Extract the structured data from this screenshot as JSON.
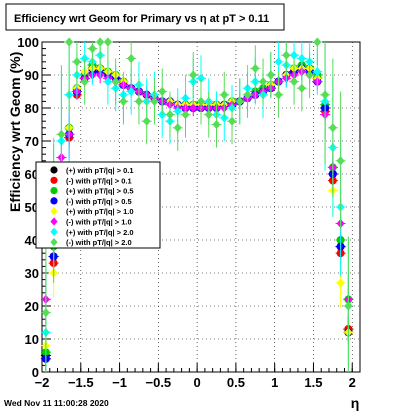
{
  "title": "Efficiency wrt Geom for Primary vs   η at pT > 0.11",
  "footer_date": "Wed Nov 11 11:00:28 2020",
  "chart_data": {
    "type": "scatter",
    "title": "Efficiency wrt Geom for Primary vs   η at pT > 0.11",
    "xlabel": "η",
    "ylabel": "Efficiency wrt Geom (%)",
    "xlim": [
      -2.0,
      2.1
    ],
    "ylim": [
      0,
      100
    ],
    "xticks": [
      -2,
      -1.5,
      -1,
      -0.5,
      0,
      0.5,
      1,
      1.5,
      2
    ],
    "xtick_labels": [
      "−2",
      "−1.5",
      "−1",
      "−0.5",
      "0",
      "0.5",
      "1",
      "1.5",
      "2"
    ],
    "yticks": [
      0,
      10,
      20,
      30,
      40,
      50,
      60,
      70,
      80,
      90,
      100
    ],
    "ytick_labels": [
      "0",
      "10",
      "20",
      "30",
      "40",
      "50",
      "60",
      "70",
      "80",
      "90",
      "100"
    ],
    "grid": true,
    "legend_position": "left-middle",
    "series": [
      {
        "name": "(+) with pT/|q| > 0.1",
        "color": "#000000",
        "marker": "circle",
        "x": [
          -1.95,
          -1.85,
          -1.75,
          -1.65,
          -1.55,
          -1.45,
          -1.35,
          -1.25,
          -1.15,
          -1.05,
          -0.95,
          -0.85,
          -0.75,
          -0.65,
          -0.55,
          -0.45,
          -0.35,
          -0.25,
          -0.15,
          -0.05,
          0.05,
          0.15,
          0.25,
          0.35,
          0.45,
          0.55,
          0.65,
          0.75,
          0.85,
          0.95,
          1.05,
          1.15,
          1.25,
          1.35,
          1.45,
          1.55,
          1.65,
          1.75,
          1.85,
          1.95
        ],
        "y": [
          5,
          35,
          60,
          72,
          85,
          90,
          92,
          92,
          91,
          89,
          87,
          86,
          85,
          84,
          83,
          82,
          82,
          81,
          81,
          81,
          81,
          81,
          81,
          81,
          82,
          82,
          83,
          84,
          85,
          86,
          88,
          90,
          91,
          92,
          92,
          89,
          80,
          60,
          38,
          13
        ]
      },
      {
        "name": "(-) with pT/|q| > 0.1",
        "color": "#ff0000",
        "marker": "circle",
        "x": [
          -1.95,
          -1.85,
          -1.75,
          -1.65,
          -1.55,
          -1.45,
          -1.35,
          -1.25,
          -1.15,
          -1.05,
          -0.95,
          -0.85,
          -0.75,
          -0.65,
          -0.55,
          -0.45,
          -0.35,
          -0.25,
          -0.15,
          -0.05,
          0.05,
          0.15,
          0.25,
          0.35,
          0.45,
          0.55,
          0.65,
          0.75,
          0.85,
          0.95,
          1.05,
          1.15,
          1.25,
          1.35,
          1.45,
          1.55,
          1.65,
          1.75,
          1.85,
          1.95
        ],
        "y": [
          4,
          33,
          58,
          71,
          84,
          89,
          91,
          92,
          90,
          89,
          88,
          86,
          85,
          84,
          83,
          82,
          82,
          81,
          80,
          80,
          80,
          80,
          80,
          81,
          81,
          82,
          83,
          84,
          85,
          86,
          88,
          90,
          91,
          92,
          91,
          88,
          79,
          58,
          36,
          13
        ]
      },
      {
        "name": "(+) with pT/|q| > 0.5",
        "color": "#00cc00",
        "marker": "circle",
        "x": [
          -1.95,
          -1.85,
          -1.75,
          -1.65,
          -1.55,
          -1.45,
          -1.35,
          -1.25,
          -1.15,
          -1.05,
          -0.95,
          -0.85,
          -0.75,
          -0.65,
          -0.55,
          -0.45,
          -0.35,
          -0.25,
          -0.15,
          -0.05,
          0.05,
          0.15,
          0.25,
          0.35,
          0.45,
          0.55,
          0.65,
          0.75,
          0.85,
          0.95,
          1.05,
          1.15,
          1.25,
          1.35,
          1.45,
          1.55,
          1.65,
          1.75,
          1.85,
          1.95
        ],
        "y": [
          6,
          38,
          62,
          74,
          86,
          90,
          93,
          92,
          91,
          90,
          88,
          86,
          85,
          84,
          83,
          82,
          82,
          81,
          81,
          81,
          81,
          81,
          81,
          81,
          82,
          82,
          83,
          85,
          86,
          87,
          88,
          90,
          92,
          93,
          92,
          90,
          81,
          62,
          40,
          22
        ]
      },
      {
        "name": "(-) with pT/|q| > 0.5",
        "color": "#0000ff",
        "marker": "circle",
        "x": [
          -1.95,
          -1.85,
          -1.75,
          -1.65,
          -1.55,
          -1.45,
          -1.35,
          -1.25,
          -1.15,
          -1.05,
          -0.95,
          -0.85,
          -0.75,
          -0.65,
          -0.55,
          -0.45,
          -0.35,
          -0.25,
          -0.15,
          -0.05,
          0.05,
          0.15,
          0.25,
          0.35,
          0.45,
          0.55,
          0.65,
          0.75,
          0.85,
          0.95,
          1.05,
          1.15,
          1.25,
          1.35,
          1.45,
          1.55,
          1.65,
          1.75,
          1.85,
          1.95
        ],
        "y": [
          4,
          35,
          60,
          72,
          85,
          89,
          91,
          91,
          90,
          89,
          87,
          86,
          85,
          84,
          83,
          82,
          82,
          81,
          80,
          80,
          80,
          80,
          80,
          81,
          81,
          82,
          83,
          84,
          85,
          86,
          88,
          90,
          91,
          92,
          91,
          88,
          80,
          60,
          38,
          12
        ]
      },
      {
        "name": "(+) with pT/|q| > 1.0",
        "color": "#ffff00",
        "marker": "diamond",
        "x": [
          -1.95,
          -1.85,
          -1.75,
          -1.65,
          -1.55,
          -1.45,
          -1.35,
          -1.25,
          -1.15,
          -1.05,
          -0.95,
          -0.85,
          -0.75,
          -0.65,
          -0.55,
          -0.45,
          -0.35,
          -0.25,
          -0.15,
          -0.05,
          0.05,
          0.15,
          0.25,
          0.35,
          0.45,
          0.55,
          0.65,
          0.75,
          0.85,
          0.95,
          1.05,
          1.15,
          1.25,
          1.35,
          1.45,
          1.55,
          1.65,
          1.75,
          1.85,
          1.95
        ],
        "y": [
          8,
          30,
          58,
          74,
          86,
          91,
          92,
          92,
          91,
          90,
          88,
          86,
          85,
          84,
          83,
          82,
          82,
          81,
          81,
          81,
          81,
          81,
          81,
          81,
          82,
          82,
          83,
          84,
          85,
          87,
          88,
          90,
          92,
          92,
          92,
          89,
          78,
          55,
          27,
          12
        ]
      },
      {
        "name": "(-) with pT/|q| > 1.0",
        "color": "#ff00ff",
        "marker": "diamond",
        "x": [
          -1.95,
          -1.85,
          -1.75,
          -1.65,
          -1.55,
          -1.45,
          -1.35,
          -1.25,
          -1.15,
          -1.05,
          -0.95,
          -0.85,
          -0.75,
          -0.65,
          -0.55,
          -0.45,
          -0.35,
          -0.25,
          -0.15,
          -0.05,
          0.05,
          0.15,
          0.25,
          0.35,
          0.45,
          0.55,
          0.65,
          0.75,
          0.85,
          0.95,
          1.05,
          1.15,
          1.25,
          1.35,
          1.45,
          1.55,
          1.65,
          1.75,
          1.85,
          1.95
        ],
        "y": [
          22,
          45,
          65,
          72,
          85,
          89,
          90,
          90,
          89,
          88,
          87,
          86,
          85,
          84,
          83,
          82,
          81,
          80,
          80,
          80,
          80,
          80,
          80,
          80,
          81,
          82,
          83,
          84,
          85,
          86,
          88,
          89,
          90,
          91,
          90,
          88,
          78,
          62,
          45,
          22
        ]
      },
      {
        "name": "(+) with pT/|q| > 2.0",
        "color": "#00ffff",
        "marker": "diamond",
        "x": [
          -1.95,
          -1.85,
          -1.75,
          -1.65,
          -1.55,
          -1.45,
          -1.35,
          -1.25,
          -1.15,
          -1.05,
          -0.95,
          -0.85,
          -0.75,
          -0.65,
          -0.55,
          -0.45,
          -0.35,
          -0.25,
          -0.15,
          -0.05,
          0.05,
          0.15,
          0.25,
          0.35,
          0.45,
          0.55,
          0.65,
          0.75,
          0.85,
          0.95,
          1.05,
          1.15,
          1.25,
          1.35,
          1.45,
          1.55,
          1.65,
          1.75,
          1.85,
          1.95
        ],
        "y": [
          12,
          50,
          70,
          84,
          90,
          95,
          94,
          96,
          88,
          86,
          84,
          85,
          87,
          82,
          84,
          78,
          76,
          79,
          83,
          88,
          89,
          82,
          78,
          77,
          80,
          82,
          86,
          88,
          84,
          90,
          94,
          93,
          96,
          95,
          94,
          91,
          82,
          68,
          50,
          20
        ]
      },
      {
        "name": "(-) with pT/|q| > 2.0",
        "color": "#55dd55",
        "marker": "diamond",
        "x": [
          -1.95,
          -1.85,
          -1.75,
          -1.65,
          -1.55,
          -1.45,
          -1.35,
          -1.25,
          -1.15,
          -1.05,
          -0.95,
          -0.85,
          -0.75,
          -0.65,
          -0.55,
          -0.45,
          -0.35,
          -0.25,
          -0.15,
          -0.05,
          0.05,
          0.15,
          0.25,
          0.35,
          0.45,
          0.55,
          0.65,
          0.75,
          0.85,
          0.95,
          1.05,
          1.15,
          1.25,
          1.35,
          1.45,
          1.55,
          1.65,
          1.75,
          1.85,
          1.95
        ],
        "y": [
          18,
          48,
          72,
          100,
          94,
          88,
          98,
          100,
          100,
          88,
          82,
          95,
          82,
          76,
          82,
          85,
          78,
          74,
          78,
          90,
          82,
          78,
          75,
          84,
          76,
          82,
          84,
          92,
          88,
          90,
          84,
          96,
          88,
          86,
          90,
          100,
          84,
          74,
          64,
          20
        ]
      }
    ]
  }
}
